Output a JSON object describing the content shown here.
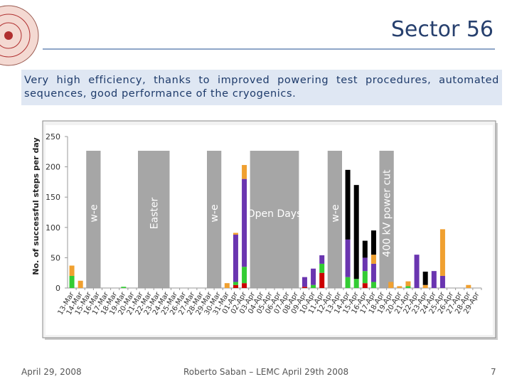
{
  "slide": {
    "title": "Sector 56",
    "text": "Very high efficiency, thanks to improved powering test procedures, automated sequences, good performance of the cryogenics.",
    "footer_left": "April 29, 2008",
    "footer_center": "Roberto Saban – LEMC April 29th 2008",
    "page": "7"
  },
  "chart_data": {
    "type": "stacked_bar",
    "ylabel": "No. of successful steps per day",
    "ylim": [
      0,
      250
    ],
    "yticks": [
      0,
      50,
      100,
      150,
      200,
      250
    ],
    "grid": false,
    "categories": [
      "13-Mar",
      "14-Mar",
      "15-Mar",
      "16-Mar",
      "17-Mar",
      "18-Mar",
      "19-Mar",
      "20-Mar",
      "21-Mar",
      "22-Mar",
      "23-Mar",
      "24-Mar",
      "25-Mar",
      "26-Mar",
      "27-Mar",
      "28-Mar",
      "29-Mar",
      "30-Mar",
      "31-Mar",
      "01-Apr",
      "02-Apr",
      "03-Apr",
      "04-Apr",
      "05-Apr",
      "06-Apr",
      "07-Apr",
      "08-Apr",
      "09-Apr",
      "10-Apr",
      "11-Apr",
      "12-Apr",
      "13-Apr",
      "14-Apr",
      "15-Apr",
      "16-Apr",
      "17-Apr",
      "18-Apr",
      "19-Apr",
      "20-Apr",
      "21-Apr",
      "22-Apr",
      "23-Apr",
      "24-Apr",
      "25-Apr",
      "26-Apr",
      "27-Apr",
      "28-Apr",
      "29-Apr"
    ],
    "series": [
      {
        "color": "#cc0000",
        "values": [
          0,
          0,
          0,
          0,
          0,
          0,
          0,
          0,
          0,
          0,
          0,
          0,
          0,
          0,
          0,
          0,
          0,
          0,
          0,
          5,
          8,
          0,
          0,
          0,
          0,
          0,
          0,
          2,
          0,
          25,
          0,
          0,
          0,
          0,
          8,
          0,
          0,
          0,
          0,
          0,
          0,
          0,
          0,
          0,
          0,
          0,
          0,
          0
        ]
      },
      {
        "color": "#33cc33",
        "values": [
          20,
          0,
          0,
          0,
          0,
          0,
          2,
          0,
          0,
          0,
          0,
          0,
          0,
          0,
          0,
          0,
          0,
          0,
          0,
          5,
          27,
          0,
          0,
          0,
          0,
          0,
          0,
          0,
          5,
          15,
          0,
          0,
          18,
          15,
          20,
          10,
          0,
          0,
          0,
          3,
          0,
          0,
          0,
          0,
          0,
          0,
          0,
          0
        ]
      },
      {
        "color": "#6a35b0",
        "values": [
          0,
          0,
          0,
          0,
          0,
          0,
          0,
          0,
          0,
          0,
          0,
          0,
          0,
          0,
          0,
          0,
          0,
          0,
          0,
          78,
          145,
          0,
          0,
          0,
          0,
          0,
          0,
          16,
          27,
          14,
          0,
          0,
          62,
          0,
          22,
          30,
          0,
          0,
          0,
          0,
          55,
          0,
          28,
          20,
          0,
          0,
          0,
          0
        ]
      },
      {
        "color": "#f0a030",
        "values": [
          17,
          12,
          0,
          0,
          0,
          0,
          0,
          0,
          0,
          0,
          0,
          0,
          0,
          0,
          0,
          0,
          0,
          0,
          8,
          3,
          23,
          0,
          0,
          0,
          0,
          0,
          0,
          0,
          0,
          0,
          0,
          0,
          0,
          0,
          0,
          15,
          0,
          10,
          3,
          8,
          0,
          5,
          0,
          77,
          0,
          0,
          5,
          0
        ]
      },
      {
        "color": "#000000",
        "values": [
          0,
          0,
          0,
          0,
          0,
          0,
          0,
          0,
          0,
          0,
          0,
          0,
          0,
          0,
          0,
          0,
          0,
          0,
          0,
          0,
          0,
          0,
          0,
          0,
          0,
          0,
          0,
          0,
          0,
          0,
          0,
          0,
          115,
          155,
          28,
          40,
          0,
          0,
          0,
          0,
          0,
          22,
          0,
          0,
          0,
          0,
          0,
          0
        ]
      }
    ],
    "bands": [
      {
        "label": "w-e",
        "start": 2,
        "end": 3,
        "rotated": true
      },
      {
        "label": "Easter",
        "start": 8,
        "end": 11,
        "rotated": true
      },
      {
        "label": "w-e",
        "start": 16,
        "end": 17,
        "rotated": true
      },
      {
        "label": "Open Days",
        "start": 21,
        "end": 26,
        "rotated": false
      },
      {
        "label": "w-e",
        "start": 30,
        "end": 31,
        "rotated": true
      },
      {
        "label": "400 kV power cut",
        "start": 36,
        "end": 37,
        "rotated": true
      }
    ],
    "band_color": "#a6a6a6"
  }
}
